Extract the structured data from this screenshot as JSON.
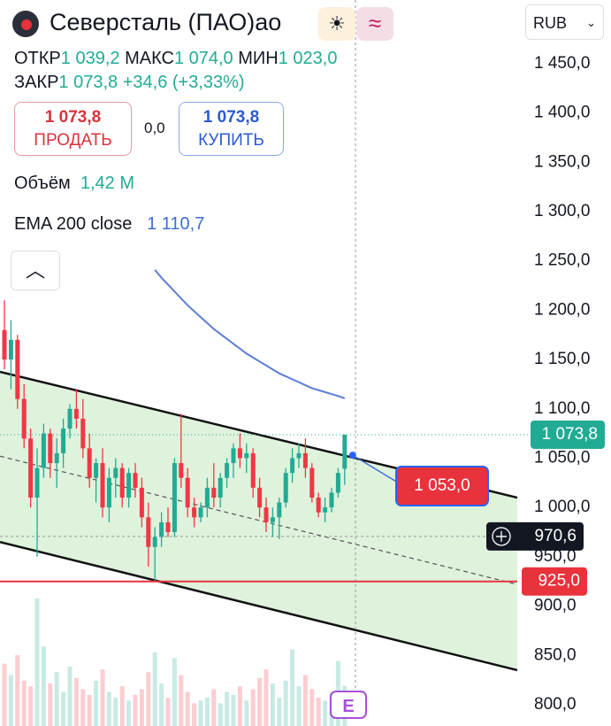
{
  "header": {
    "title": "Северсталь (ПАО)ао",
    "currency": "RUB",
    "open_label": "ОТКР",
    "open": "1 039,2",
    "high_label": "МАКС",
    "high": "1 074,0",
    "low_label": "МИН",
    "low": "1 023,0",
    "close_label": "ЗАКР",
    "close": "1 073,8",
    "change": "+34,6 (+3,33%)",
    "sell_price": "1 073,8",
    "sell": "ПРОДАТЬ",
    "spread": "0,0",
    "buy_price": "1 073,8",
    "buy": "КУПИТЬ",
    "volume_label": "Объём",
    "volume": "1,42 M",
    "ema_label": "EMA 200 close",
    "ema_value": "1 110,7",
    "events_icon": "E"
  },
  "chart_data": {
    "type": "candlestick",
    "ylim": [
      778.4,
      1514.6
    ],
    "yticks": [
      {
        "value": 1450,
        "label": "1 450,0"
      },
      {
        "value": 1400,
        "label": "1 400,0"
      },
      {
        "value": 1350,
        "label": "1 350,0"
      },
      {
        "value": 1300,
        "label": "1 300,0"
      },
      {
        "value": 1250,
        "label": "1 250,0"
      },
      {
        "value": 1200,
        "label": "1 200,0"
      },
      {
        "value": 1150,
        "label": "1 150,0"
      },
      {
        "value": 1100,
        "label": "1 100,0"
      },
      {
        "value": 1050,
        "label": "1 050,0"
      },
      {
        "value": 1000,
        "label": "1 000,0"
      },
      {
        "value": 950,
        "label": "950,0"
      },
      {
        "value": 900,
        "label": "900,0"
      },
      {
        "value": 850,
        "label": "850,0"
      },
      {
        "value": 800,
        "label": "800,0"
      }
    ],
    "open": [
      1180,
      1150,
      1170,
      1110,
      1070,
      1010,
      1040,
      1075,
      1045,
      1055,
      1080,
      1100,
      1090,
      1060,
      1030,
      1045,
      1000,
      1030,
      1040,
      1010,
      1035,
      1020,
      990,
      960,
      970,
      985,
      975,
      1045,
      1030,
      1000,
      990,
      1000,
      1020,
      1010,
      1030,
      1045,
      1060,
      1050,
      1055,
      1020,
      1000,
      985,
      990,
      1005,
      1035,
      1050,
      1055,
      1040,
      1010,
      995,
      1000,
      1015,
      1039.2
    ],
    "high": [
      1210,
      1190,
      1175,
      1125,
      1080,
      1060,
      1085,
      1080,
      1070,
      1090,
      1105,
      1120,
      1110,
      1075,
      1050,
      1060,
      1040,
      1050,
      1045,
      1040,
      1045,
      1030,
      1005,
      980,
      995,
      1000,
      1050,
      1095,
      1040,
      1010,
      1005,
      1030,
      1045,
      1035,
      1050,
      1065,
      1075,
      1065,
      1060,
      1030,
      1010,
      1000,
      1010,
      1040,
      1060,
      1065,
      1070,
      1045,
      1015,
      1010,
      1020,
      1040,
      1074.0
    ],
    "low": [
      1140,
      1120,
      1100,
      1060,
      1000,
      950,
      1030,
      1030,
      1020,
      1040,
      1070,
      1080,
      1050,
      1020,
      1005,
      990,
      985,
      1010,
      1000,
      1000,
      1010,
      980,
      940,
      925,
      960,
      970,
      970,
      1020,
      990,
      980,
      985,
      990,
      1000,
      1000,
      1020,
      1030,
      1040,
      1035,
      1010,
      990,
      975,
      970,
      968,
      1000,
      1025,
      1040,
      1030,
      1005,
      990,
      985,
      995,
      1010,
      1023.0
    ],
    "close": [
      1150,
      1170,
      1110,
      1070,
      1010,
      1040,
      1075,
      1045,
      1055,
      1080,
      1100,
      1090,
      1060,
      1030,
      1045,
      1000,
      1030,
      1040,
      1010,
      1035,
      1020,
      990,
      960,
      970,
      985,
      975,
      1045,
      1030,
      1000,
      990,
      1000,
      1020,
      1010,
      1030,
      1045,
      1060,
      1050,
      1055,
      1020,
      1000,
      985,
      990,
      1005,
      1035,
      1050,
      1055,
      1040,
      1010,
      995,
      1000,
      1015,
      1035,
      1073.8
    ],
    "volumes": [
      2.2,
      1.8,
      2.5,
      1.6,
      1.4,
      4.5,
      2.8,
      1.5,
      1.9,
      1.2,
      2.1,
      1.7,
      1.3,
      1.1,
      1.6,
      2.0,
      1.2,
      1.0,
      1.4,
      0.9,
      1.1,
      1.3,
      1.9,
      2.6,
      1.5,
      1.0,
      2.4,
      1.8,
      1.2,
      0.8,
      0.9,
      1.0,
      1.3,
      0.8,
      1.2,
      1.1,
      1.4,
      0.9,
      1.3,
      1.7,
      2.0,
      1.5,
      1.0,
      1.6,
      2.7,
      1.4,
      1.8,
      1.3,
      1.0,
      0.9,
      1.2,
      2.3,
      1.42
    ],
    "ema": [
      null,
      null,
      null,
      null,
      null,
      null,
      null,
      null,
      null,
      null,
      null,
      null,
      null,
      null,
      null,
      null,
      null,
      null,
      null,
      null,
      null,
      null,
      null,
      1241,
      1233,
      1226,
      1219,
      1212,
      1205,
      1199,
      1193,
      1187,
      1181,
      1176,
      1171,
      1166,
      1161,
      1156,
      1152,
      1148,
      1144,
      1140,
      1136,
      1133,
      1130,
      1127,
      1124,
      1121,
      1119,
      1117,
      1115,
      1113,
      1110.7
    ],
    "channel": {
      "upper": [
        1137.6,
        1010
      ],
      "middle": [
        1052,
        922
      ],
      "lower": [
        965,
        835
      ]
    },
    "last_price": {
      "value": 1073.8,
      "label": "1 073,8"
    },
    "crosshair": {
      "value": 970.6,
      "label": "970,6"
    },
    "alert": {
      "value": 925.0,
      "label": "925,0"
    },
    "target": {
      "value": 1053.0,
      "label": "1 053,0"
    },
    "colors": {
      "up": "#22ab94",
      "down": "#f23645",
      "ema": "#5b7fd6",
      "channel_fill": "#dff2dc",
      "alert": "#e8323c"
    }
  }
}
